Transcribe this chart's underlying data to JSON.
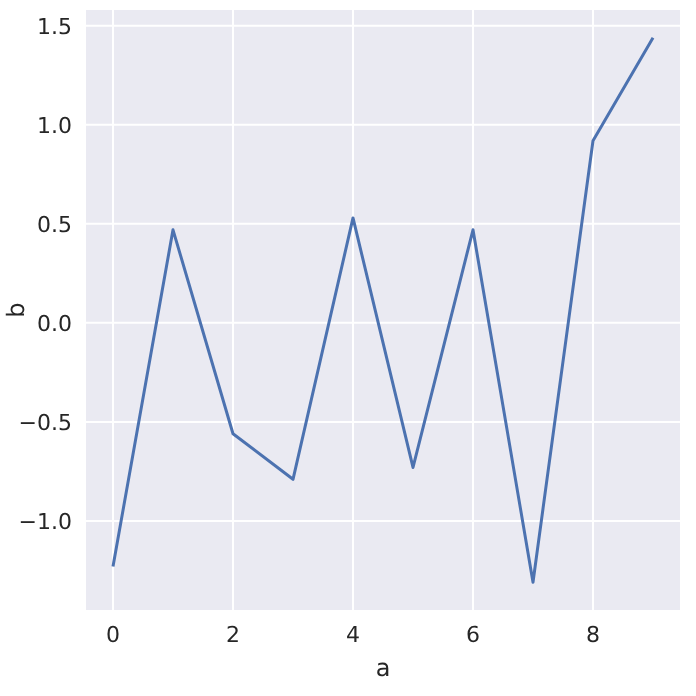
{
  "chart_data": {
    "type": "line",
    "xlabel": "a",
    "ylabel": "b",
    "x": [
      0,
      1,
      2,
      3,
      4,
      5,
      6,
      7,
      8,
      9
    ],
    "series": [
      {
        "color": "#4c72b0",
        "values": [
          -1.23,
          0.47,
          -0.56,
          -0.79,
          0.53,
          -0.73,
          0.47,
          -1.31,
          0.92,
          1.44
        ]
      }
    ],
    "xlim": [
      -0.45,
      9.45
    ],
    "ylim": [
      -1.45,
      1.58
    ],
    "xticks": [
      0,
      2,
      4,
      6,
      8
    ],
    "yticks": [
      {
        "value": -1,
        "label": "−1.0"
      },
      {
        "value": -0.5,
        "label": "−0.5"
      },
      {
        "value": 0,
        "label": "0.0"
      },
      {
        "value": 0.5,
        "label": "0.5"
      },
      {
        "value": 1,
        "label": "1.0"
      },
      {
        "value": 1.5,
        "label": "1.5"
      }
    ],
    "grid": true,
    "marker": "none",
    "line_style": "solid"
  }
}
